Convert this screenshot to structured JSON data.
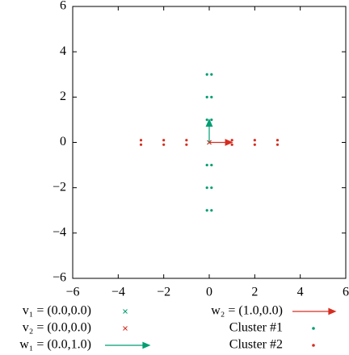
{
  "chart_data": {
    "type": "scatter",
    "xlim": [
      -6,
      6
    ],
    "ylim": [
      -6,
      6
    ],
    "xticks": [
      {
        "value": -6,
        "label": "−6"
      },
      {
        "value": -4,
        "label": "−4"
      },
      {
        "value": -2,
        "label": "−2"
      },
      0,
      2,
      4,
      6
    ],
    "yticks": [
      {
        "value": -6,
        "label": "−6"
      },
      {
        "value": -4,
        "label": "−4"
      },
      {
        "value": -2,
        "label": "−2"
      },
      0,
      2,
      4,
      6
    ],
    "vectors": [
      {
        "name": "v₁ = (0.0,0.0)",
        "marker": "cross",
        "color": "#009e73",
        "x": [
          0
        ],
        "y": [
          0
        ]
      },
      {
        "name": "v₂ = (0.0,0.0)",
        "marker": "cross",
        "color": "#d62d20",
        "x": [
          0
        ],
        "y": [
          0
        ]
      },
      {
        "name": "w₁ = (0.0,1.0)",
        "marker": "arrow",
        "color": "#009e73",
        "x": [
          0,
          0
        ],
        "y": [
          0,
          1
        ]
      },
      {
        "name": "w₂ = (1.0,0.0)",
        "marker": "arrow",
        "color": "#d62d20",
        "x": [
          0,
          1
        ],
        "y": [
          0,
          0
        ]
      }
    ],
    "series": [
      {
        "name": "Cluster #1",
        "color": "#009e73",
        "x": [
          -0.1,
          0.1,
          -0.1,
          0.1,
          -0.1,
          0.1,
          -0.1,
          0.1,
          -0.1,
          0.1,
          -0.1,
          0.1
        ],
        "y": [
          3,
          3,
          2,
          2,
          1,
          1,
          -1,
          -1,
          -2,
          -2,
          -3,
          -3
        ]
      },
      {
        "name": "Cluster #2",
        "color": "#d62d20",
        "x": [
          -3,
          -3,
          -2,
          -2,
          -1,
          -1,
          1,
          1,
          2,
          2,
          3,
          3
        ],
        "y": [
          0.1,
          -0.1,
          0.1,
          -0.1,
          0.1,
          -0.1,
          0.1,
          -0.1,
          0.1,
          -0.1,
          0.1,
          -0.1
        ]
      }
    ]
  }
}
